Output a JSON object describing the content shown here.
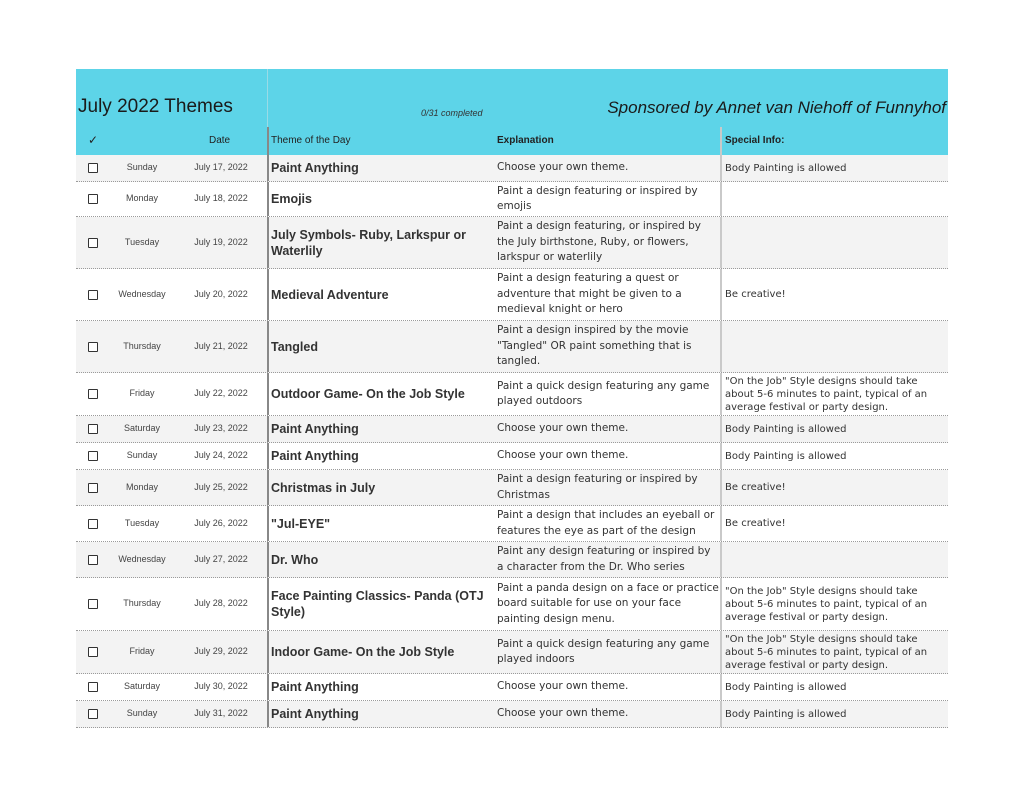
{
  "header": {
    "title": "July 2022 Themes",
    "progress": "0/31 completed",
    "sponsor": "Sponsored by Annet van Niehoff of Funnyhof",
    "accent_color": "#5dd4e8"
  },
  "columns": {
    "check": "✓",
    "date": "Date",
    "theme": "Theme of the Day",
    "explanation": "Explanation",
    "special_info": "Special Info:"
  },
  "rows": [
    {
      "day": "Sunday",
      "date": "July 17, 2022",
      "theme": "Paint Anything",
      "explanation": "Choose your own theme.",
      "info": "Body Painting is allowed",
      "checked": false
    },
    {
      "day": "Monday",
      "date": "July 18, 2022",
      "theme": "Emojis",
      "explanation": "Paint a design featuring or inspired by emojis",
      "info": "",
      "checked": false
    },
    {
      "day": "Tuesday",
      "date": "July 19, 2022",
      "theme": "July Symbols- Ruby, Larkspur or Waterlily",
      "explanation": "Paint a design featuring, or inspired by the July birthstone, Ruby, or flowers, larkspur or waterlily",
      "info": "",
      "checked": false
    },
    {
      "day": "Wednesday",
      "date": "July 20, 2022",
      "theme": "Medieval Adventure",
      "explanation": "Paint a design featuring a quest or adventure that might be given to a medieval knight or hero",
      "info": "Be creative!",
      "checked": false
    },
    {
      "day": "Thursday",
      "date": "July 21, 2022",
      "theme": "Tangled",
      "explanation": "Paint a design inspired by the movie \"Tangled\" OR paint something that is tangled.",
      "info": "",
      "checked": false
    },
    {
      "day": "Friday",
      "date": "July 22, 2022",
      "theme": "Outdoor Game- On the Job Style",
      "explanation": "Paint a quick design featuring any game played outdoors",
      "info": "\"On the Job\" Style designs should take about 5-6 minutes to paint, typical of an average festival or party design.",
      "checked": false
    },
    {
      "day": "Saturday",
      "date": "July 23, 2022",
      "theme": "Paint Anything",
      "explanation": "Choose your own theme.",
      "info": "Body Painting is allowed",
      "checked": false
    },
    {
      "day": "Sunday",
      "date": "July 24, 2022",
      "theme": "Paint Anything",
      "explanation": "Choose your own theme.",
      "info": "Body Painting is allowed",
      "checked": false
    },
    {
      "day": "Monday",
      "date": "July 25, 2022",
      "theme": "Christmas in July",
      "explanation": "Paint a design featuring or inspired by Christmas",
      "info": "Be creative!",
      "checked": false
    },
    {
      "day": "Tuesday",
      "date": "July 26, 2022",
      "theme": "\"Jul-EYE\"",
      "explanation": "Paint a design that includes an eyeball or features the eye as part of the design",
      "info": "Be creative!",
      "checked": false
    },
    {
      "day": "Wednesday",
      "date": "July 27, 2022",
      "theme": "Dr. Who",
      "explanation": "Paint any design featuring or inspired by a character from the Dr. Who series",
      "info": "",
      "checked": false
    },
    {
      "day": "Thursday",
      "date": "July 28, 2022",
      "theme": "Face Painting Classics- Panda (OTJ Style)",
      "explanation": "Paint a panda design on a face or practice board suitable for use on your face painting design menu.",
      "info": "\"On the Job\" Style designs should take about 5-6 minutes to paint, typical of an average festival or party design.",
      "checked": false
    },
    {
      "day": "Friday",
      "date": "July 29, 2022",
      "theme": "Indoor Game- On the Job Style",
      "explanation": "Paint a quick design featuring any game played indoors",
      "info": "\"On the Job\" Style designs should take about 5-6 minutes to paint, typical of an average festival or party design.",
      "checked": false
    },
    {
      "day": "Saturday",
      "date": "July 30, 2022",
      "theme": "Paint Anything",
      "explanation": "Choose your own theme.",
      "info": "Body Painting is allowed",
      "checked": false
    },
    {
      "day": "Sunday",
      "date": "July 31, 2022",
      "theme": "Paint Anything",
      "explanation": "Choose your own theme.",
      "info": "Body Painting is allowed",
      "checked": false
    }
  ]
}
